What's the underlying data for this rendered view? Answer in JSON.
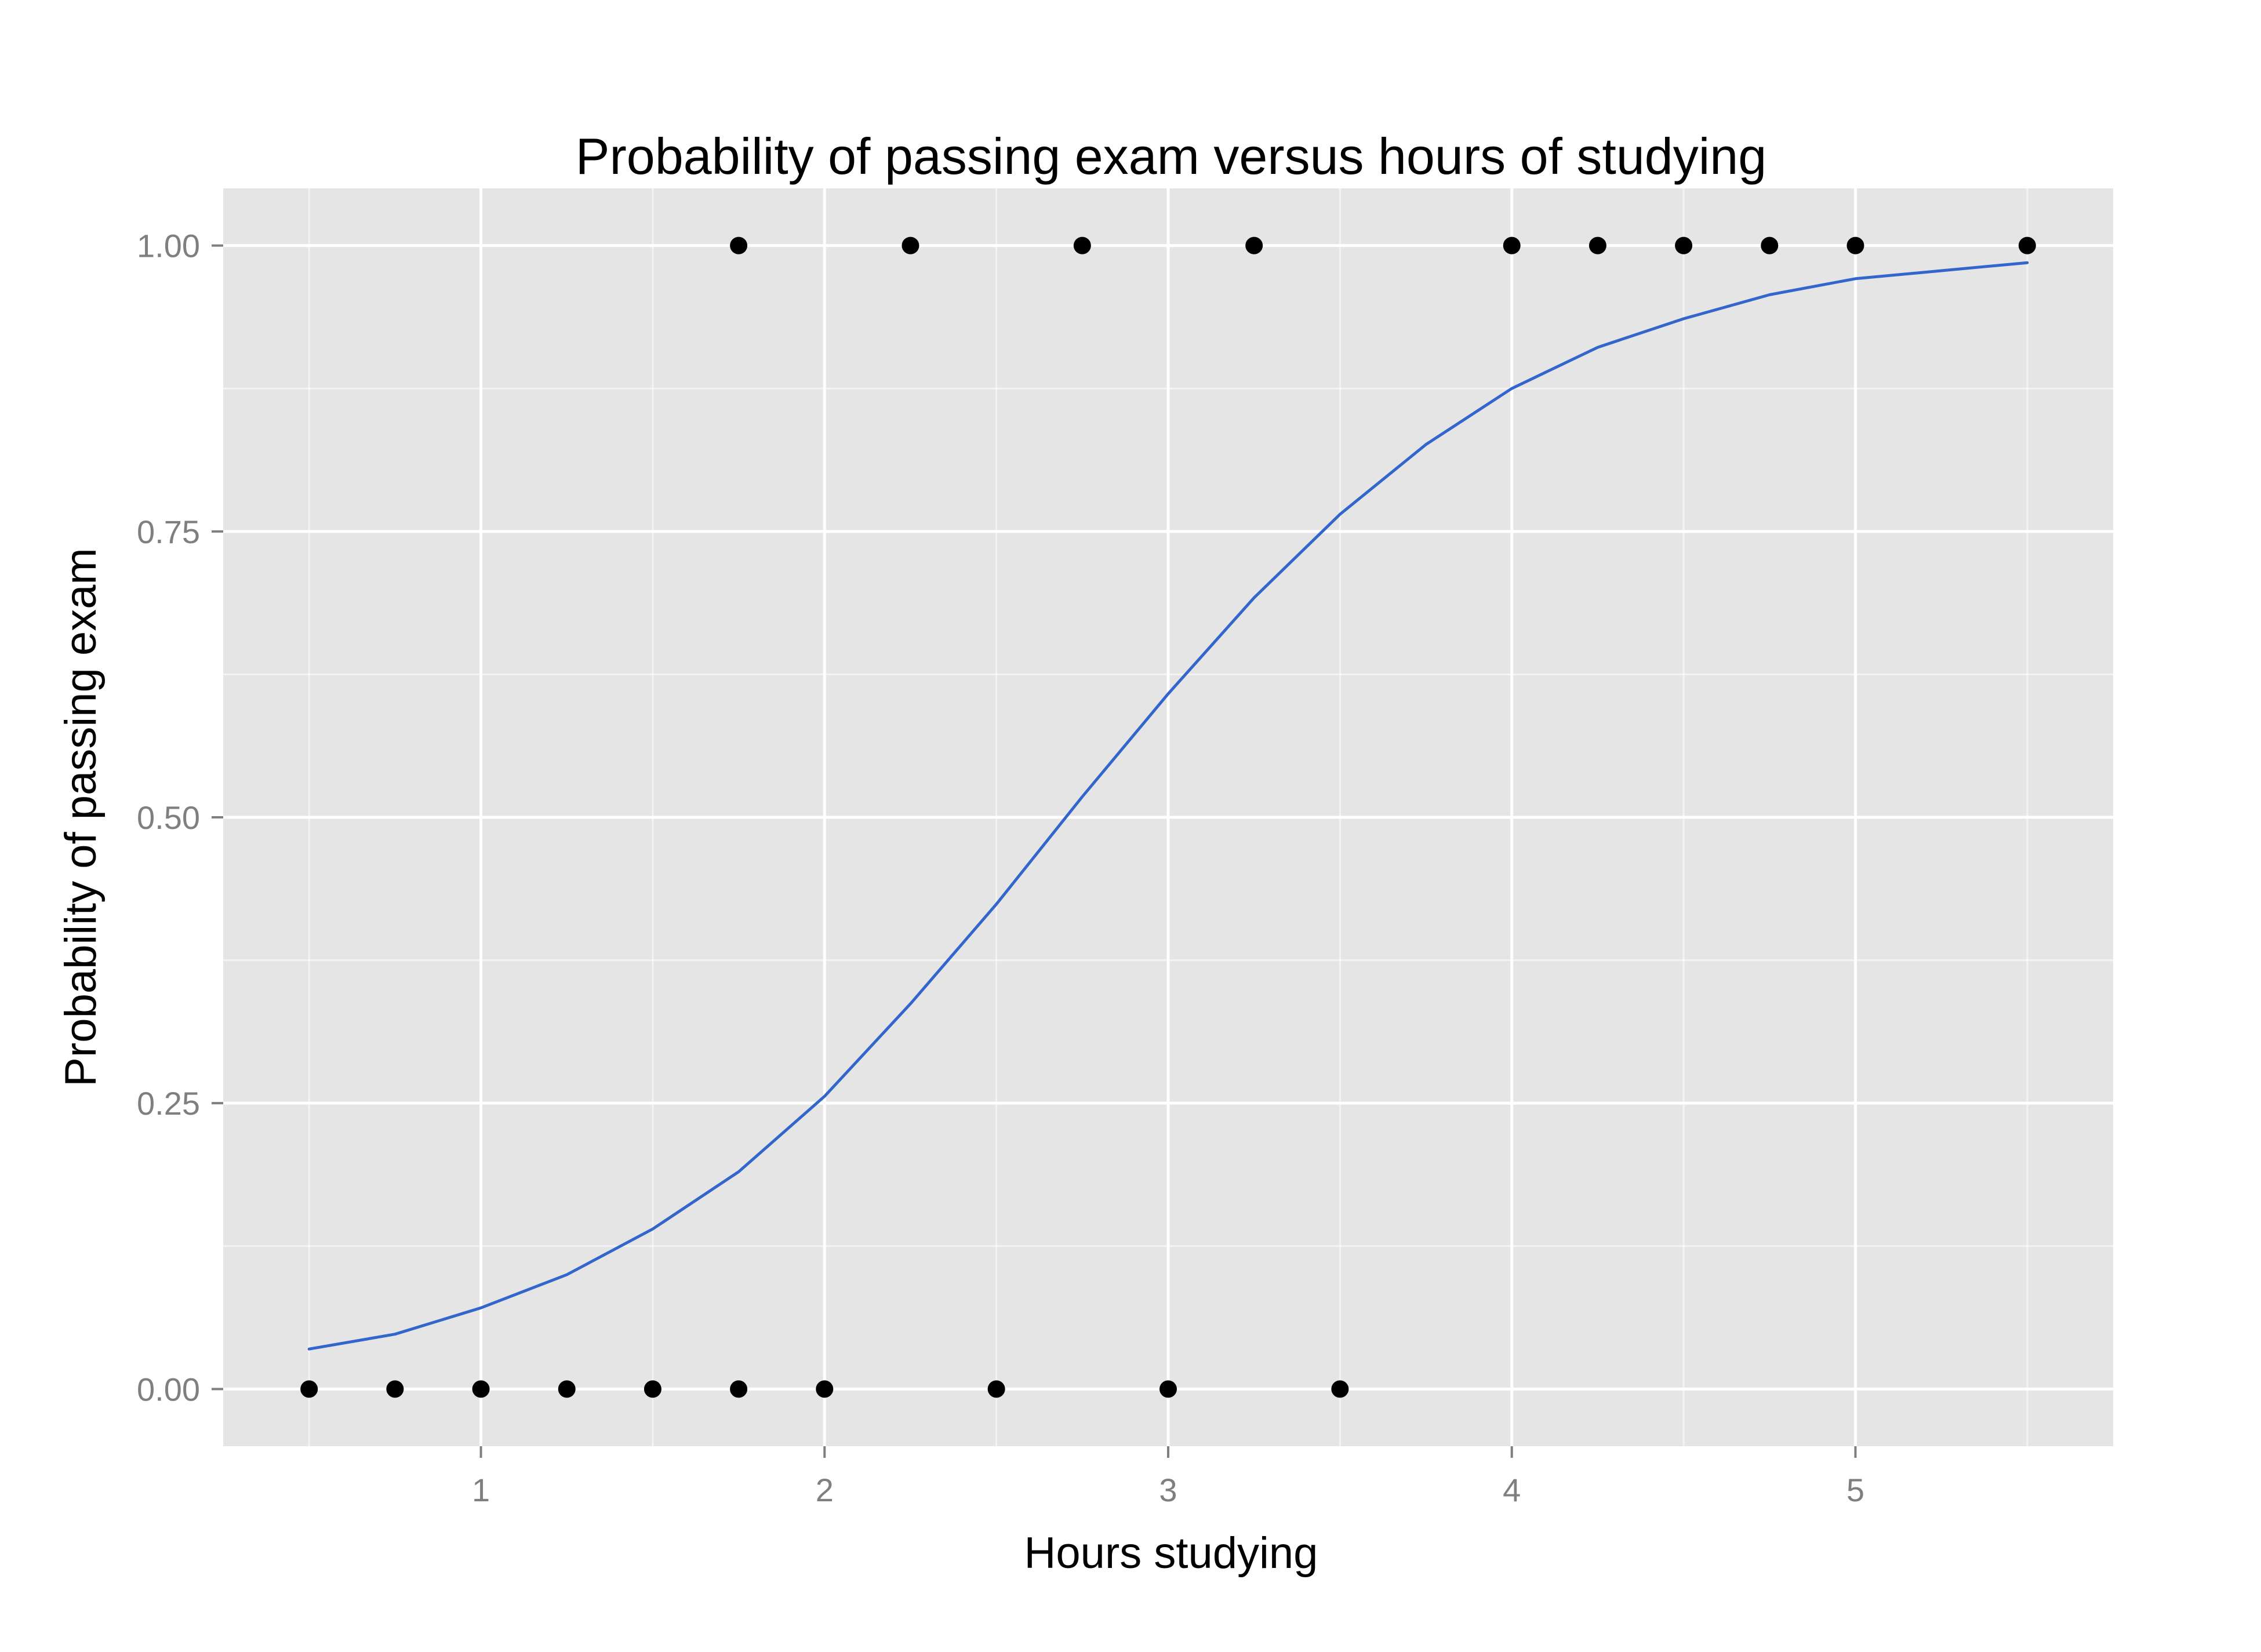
{
  "chart_data": {
    "type": "scatter",
    "title": "Probability of passing exam versus hours of studying",
    "xlabel": "Hours studying",
    "ylabel": "Probability of passing exam",
    "xlim": [
      0.25,
      5.75
    ],
    "ylim": [
      -0.05,
      1.05
    ],
    "x_ticks": [
      1,
      2,
      3,
      4,
      5
    ],
    "x_tick_labels": [
      "1",
      "2",
      "3",
      "4",
      "5"
    ],
    "y_ticks": [
      0.0,
      0.25,
      0.5,
      0.75,
      1.0
    ],
    "y_tick_labels": [
      "0.00",
      "0.25",
      "0.50",
      "0.75",
      "1.00"
    ],
    "grid": true,
    "legend": "none",
    "series": [
      {
        "kind": "points",
        "color": "#000000",
        "x": [
          0.5,
          0.75,
          1.0,
          1.25,
          1.5,
          1.75,
          1.75,
          2.0,
          2.25,
          2.5,
          2.75,
          3.0,
          3.25,
          3.5,
          4.0,
          4.25,
          4.5,
          4.75,
          5.0,
          5.5
        ],
        "y": [
          0,
          0,
          0,
          0,
          0,
          0,
          1,
          0,
          1,
          0,
          1,
          0,
          1,
          0,
          1,
          1,
          1,
          1,
          1,
          1
        ]
      },
      {
        "kind": "line",
        "color": "#3366cc",
        "x": [
          0.5,
          0.75,
          1.0,
          1.25,
          1.5,
          1.75,
          2.0,
          2.25,
          2.5,
          2.75,
          3.0,
          3.25,
          3.5,
          3.75,
          4.0,
          4.25,
          4.5,
          4.75,
          5.0,
          5.25,
          5.5
        ],
        "y": [
          0.035,
          0.048,
          0.071,
          0.1,
          0.14,
          0.19,
          0.256,
          0.337,
          0.424,
          0.518,
          0.608,
          0.692,
          0.765,
          0.826,
          0.875,
          0.911,
          0.936,
          0.957,
          0.971,
          0.978,
          0.985
        ]
      }
    ]
  },
  "colors": {
    "panel_background": "#e5e5e5",
    "gridline": "#ffffff",
    "tick_label": "#7f7f7f",
    "points": "#000000",
    "curve": "#3366cc"
  }
}
